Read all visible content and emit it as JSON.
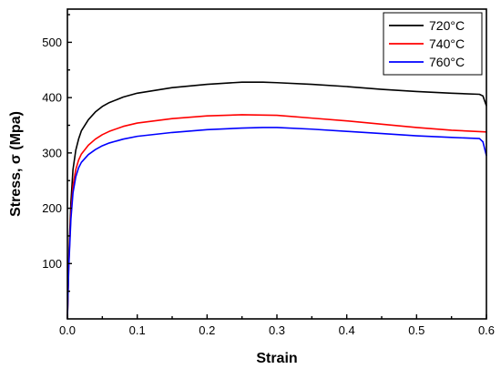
{
  "chart_data": {
    "type": "line",
    "title": "",
    "xlabel": "Strain",
    "ylabel": "Stress, σ (Mpa)",
    "xlim": [
      0,
      0.6
    ],
    "ylim": [
      0,
      560
    ],
    "xticks": [
      0.0,
      0.1,
      0.2,
      0.3,
      0.4,
      0.5,
      0.6
    ],
    "xtick_labels": [
      "0.0",
      "0.1",
      "0.2",
      "0.3",
      "0.4",
      "0.5",
      "0.6"
    ],
    "yticks": [
      100,
      200,
      300,
      400,
      500
    ],
    "ytick_labels": [
      "100",
      "200",
      "300",
      "400",
      "500"
    ],
    "grid": false,
    "legend_position": "top-right",
    "series": [
      {
        "name": "720°C",
        "color": "#000000",
        "x": [
          0,
          0.002,
          0.005,
          0.008,
          0.012,
          0.016,
          0.02,
          0.03,
          0.04,
          0.05,
          0.06,
          0.08,
          0.1,
          0.15,
          0.2,
          0.25,
          0.28,
          0.3,
          0.35,
          0.4,
          0.45,
          0.5,
          0.55,
          0.59,
          0.595,
          0.6
        ],
        "y": [
          0,
          110,
          210,
          270,
          305,
          325,
          340,
          360,
          374,
          384,
          391,
          401,
          408,
          418,
          424,
          428,
          428,
          427,
          424,
          420,
          415,
          411,
          408,
          406,
          403,
          385
        ]
      },
      {
        "name": "740°C",
        "color": "#ff0000",
        "x": [
          0,
          0.002,
          0.005,
          0.008,
          0.012,
          0.016,
          0.02,
          0.03,
          0.04,
          0.05,
          0.06,
          0.08,
          0.1,
          0.15,
          0.2,
          0.25,
          0.3,
          0.35,
          0.4,
          0.45,
          0.5,
          0.55,
          0.6
        ],
        "y": [
          0,
          100,
          190,
          240,
          270,
          287,
          298,
          314,
          325,
          333,
          339,
          348,
          354,
          362,
          367,
          369,
          368,
          363,
          358,
          352,
          346,
          341,
          338
        ]
      },
      {
        "name": "760°C",
        "color": "#0000ff",
        "x": [
          0,
          0.002,
          0.005,
          0.008,
          0.012,
          0.016,
          0.02,
          0.03,
          0.04,
          0.05,
          0.06,
          0.08,
          0.1,
          0.15,
          0.2,
          0.25,
          0.28,
          0.3,
          0.35,
          0.4,
          0.45,
          0.5,
          0.55,
          0.59,
          0.595,
          0.6
        ],
        "y": [
          0,
          95,
          180,
          228,
          257,
          273,
          283,
          297,
          306,
          313,
          318,
          325,
          330,
          337,
          342,
          345,
          346,
          346,
          343,
          339,
          335,
          331,
          328,
          326,
          320,
          295
        ]
      }
    ]
  }
}
